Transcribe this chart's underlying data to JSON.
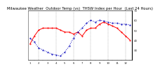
{
  "title": "Milwaukee Weather  Outdoor Temp (vs)  THSW Index per Hour  (Last 24 Hours)",
  "bg_color": "#ffffff",
  "plot_bg": "#ffffff",
  "grid_color": "#888888",
  "temp_color": "#ff0000",
  "thsw_color": "#0000bb",
  "temp_values": [
    68,
    72,
    75,
    76,
    76,
    76,
    76,
    75,
    74,
    74,
    73,
    74,
    72,
    75,
    76,
    76,
    78,
    79,
    78,
    77,
    76,
    74,
    72,
    70
  ],
  "thsw_values": [
    42,
    38,
    32,
    30,
    28,
    26,
    25,
    24,
    28,
    34,
    42,
    48,
    52,
    57,
    60,
    58,
    60,
    59,
    58,
    57,
    57,
    56,
    56,
    55
  ],
  "ylim_left": [
    60,
    85
  ],
  "ylim_right": [
    20,
    70
  ],
  "yticks_right": [
    30,
    40,
    50,
    60,
    70
  ],
  "x_labels": [
    "1",
    "",
    "2",
    "",
    "3",
    "",
    "4",
    "",
    "5",
    "",
    "6",
    "",
    "7",
    "",
    "8",
    "",
    "9",
    "",
    "10",
    "",
    "11",
    "",
    "12",
    ""
  ],
  "n_points": 24,
  "vgrid_positions": [
    2,
    6,
    10,
    14,
    18,
    22
  ],
  "title_fontsize": 3.8,
  "tick_fontsize": 2.8,
  "line_width": 0.7,
  "marker_size": 1.0
}
